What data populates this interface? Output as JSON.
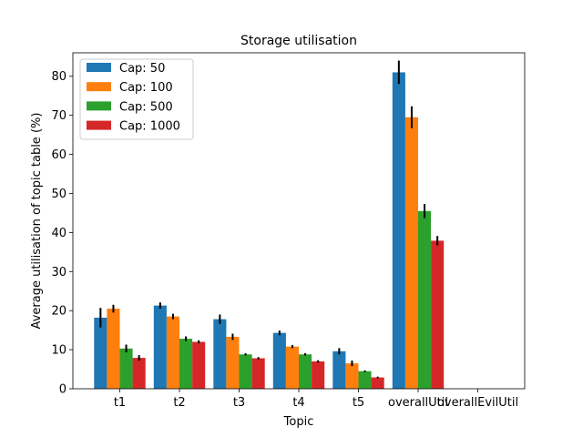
{
  "chart_data": {
    "type": "bar",
    "title": "Storage utilisation",
    "xlabel": "Topic",
    "ylabel": "Average utilisation of topic table (%)",
    "categories": [
      "t1",
      "t2",
      "t3",
      "t4",
      "t5",
      "overallUtil",
      "overallEvilUtil"
    ],
    "ylim": [
      0,
      86
    ],
    "yticks": [
      0,
      10,
      20,
      30,
      40,
      50,
      60,
      70,
      80
    ],
    "grid": false,
    "legend_position": "top-left",
    "series": [
      {
        "name": "Cap: 50",
        "color": "#1f77b4",
        "values": [
          18.2,
          21.3,
          17.8,
          14.3,
          9.6,
          81.0,
          0
        ],
        "errors": [
          2.5,
          0.8,
          1.2,
          0.6,
          0.8,
          3.0,
          0
        ]
      },
      {
        "name": "Cap: 100",
        "color": "#ff7f0e",
        "values": [
          20.5,
          18.5,
          13.3,
          10.8,
          6.5,
          69.5,
          0
        ],
        "errors": [
          1.0,
          0.7,
          0.8,
          0.4,
          0.7,
          2.8,
          0
        ]
      },
      {
        "name": "Cap: 500",
        "color": "#2ca02c",
        "values": [
          10.3,
          12.8,
          8.8,
          8.8,
          4.5,
          45.5,
          0
        ],
        "errors": [
          1.0,
          0.6,
          0.3,
          0.3,
          0.2,
          1.8,
          0
        ]
      },
      {
        "name": "Cap: 1000",
        "color": "#d62728",
        "values": [
          7.9,
          12.0,
          7.8,
          7.0,
          2.9,
          37.9,
          0
        ],
        "errors": [
          0.7,
          0.4,
          0.3,
          0.3,
          0.2,
          1.2,
          0
        ]
      }
    ]
  }
}
